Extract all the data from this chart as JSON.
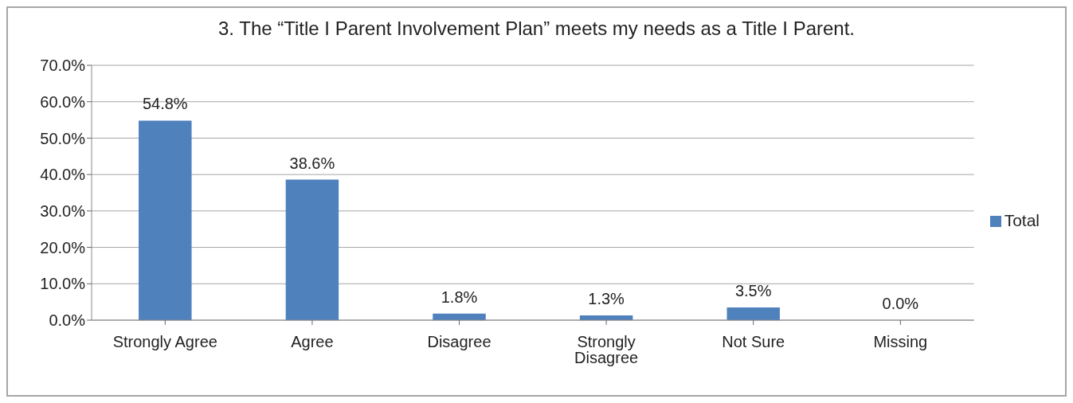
{
  "chart_data": {
    "type": "bar",
    "title": "3.  The “Title I Parent Involvement Plan” meets my needs as a Title I Parent.",
    "categories": [
      "Strongly Agree",
      "Agree",
      "Disagree",
      "Strongly Disagree",
      "Not Sure",
      "Missing"
    ],
    "series": [
      {
        "name": "Total",
        "color": "#4f81bd",
        "values": [
          54.8,
          38.6,
          1.8,
          1.3,
          3.5,
          0.0
        ],
        "value_labels": [
          "54.8%",
          "38.6%",
          "1.8%",
          "1.3%",
          "3.5%",
          "0.0%"
        ]
      }
    ],
    "ylim": [
      0,
      70
    ],
    "yticks": [
      {
        "value": 0,
        "label": "0.0%"
      },
      {
        "value": 10,
        "label": "10.0%"
      },
      {
        "value": 20,
        "label": "20.0%"
      },
      {
        "value": 30,
        "label": "30.0%"
      },
      {
        "value": 40,
        "label": "40.0%"
      },
      {
        "value": 50,
        "label": "50.0%"
      },
      {
        "value": 60,
        "label": "60.0%"
      },
      {
        "value": 70,
        "label": "70.0%"
      }
    ],
    "grid": "y",
    "legend": "right"
  }
}
